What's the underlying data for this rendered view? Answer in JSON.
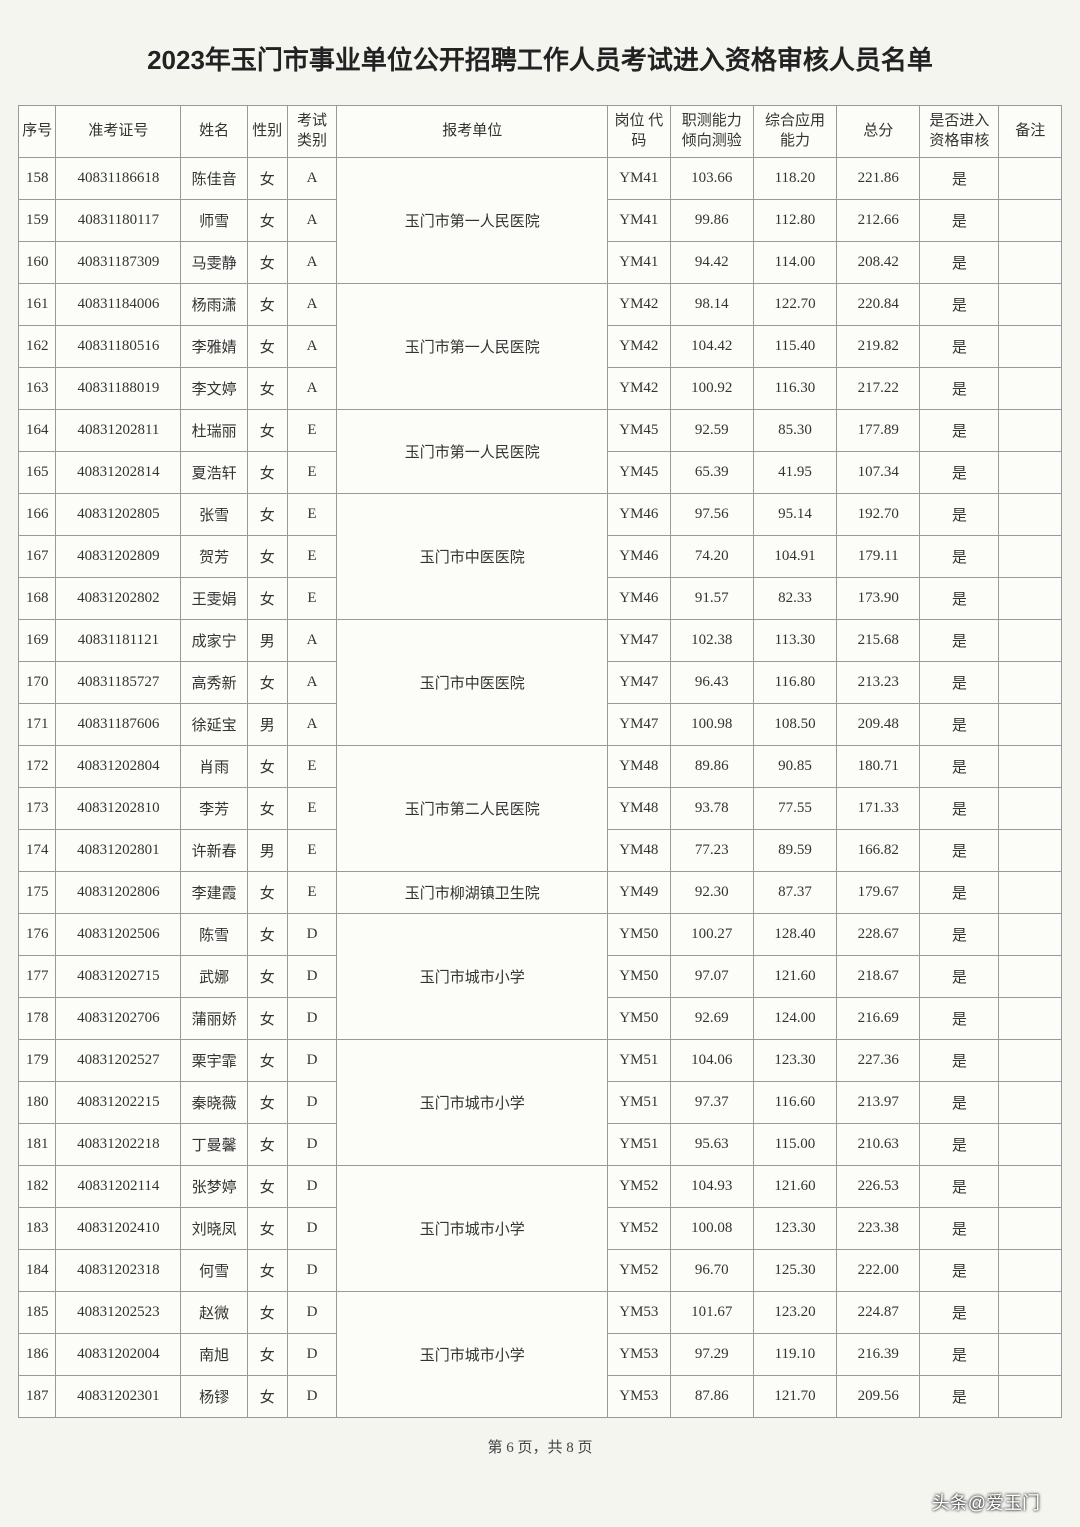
{
  "title": "2023年玉门市事业单位公开招聘工作人员考试进入资格审核人员名单",
  "headers": {
    "seq": "序号",
    "examNo": "准考证号",
    "name": "姓名",
    "sex": "性别",
    "category": "考试\n类别",
    "unit": "报考单位",
    "postCode": "岗位\n代码",
    "score1": "职测能力\n倾向测验",
    "score2": "综合应用\n能力",
    "total": "总分",
    "pass": "是否进入\n资格审核",
    "note": "备注"
  },
  "groups": [
    {
      "unit": "玉门市第一人民医院",
      "rows": [
        {
          "seq": "158",
          "examNo": "40831186618",
          "name": "陈佳音",
          "sex": "女",
          "cat": "A",
          "post": "YM41",
          "s1": "103.66",
          "s2": "118.20",
          "tot": "221.86",
          "pass": "是",
          "note": ""
        },
        {
          "seq": "159",
          "examNo": "40831180117",
          "name": "师雪",
          "sex": "女",
          "cat": "A",
          "post": "YM41",
          "s1": "99.86",
          "s2": "112.80",
          "tot": "212.66",
          "pass": "是",
          "note": ""
        },
        {
          "seq": "160",
          "examNo": "40831187309",
          "name": "马雯静",
          "sex": "女",
          "cat": "A",
          "post": "YM41",
          "s1": "94.42",
          "s2": "114.00",
          "tot": "208.42",
          "pass": "是",
          "note": ""
        }
      ]
    },
    {
      "unit": "玉门市第一人民医院",
      "rows": [
        {
          "seq": "161",
          "examNo": "40831184006",
          "name": "杨雨潇",
          "sex": "女",
          "cat": "A",
          "post": "YM42",
          "s1": "98.14",
          "s2": "122.70",
          "tot": "220.84",
          "pass": "是",
          "note": ""
        },
        {
          "seq": "162",
          "examNo": "40831180516",
          "name": "李雅婧",
          "sex": "女",
          "cat": "A",
          "post": "YM42",
          "s1": "104.42",
          "s2": "115.40",
          "tot": "219.82",
          "pass": "是",
          "note": ""
        },
        {
          "seq": "163",
          "examNo": "40831188019",
          "name": "李文婷",
          "sex": "女",
          "cat": "A",
          "post": "YM42",
          "s1": "100.92",
          "s2": "116.30",
          "tot": "217.22",
          "pass": "是",
          "note": ""
        }
      ]
    },
    {
      "unit": "玉门市第一人民医院",
      "rows": [
        {
          "seq": "164",
          "examNo": "40831202811",
          "name": "杜瑞丽",
          "sex": "女",
          "cat": "E",
          "post": "YM45",
          "s1": "92.59",
          "s2": "85.30",
          "tot": "177.89",
          "pass": "是",
          "note": ""
        },
        {
          "seq": "165",
          "examNo": "40831202814",
          "name": "夏浩轩",
          "sex": "女",
          "cat": "E",
          "post": "YM45",
          "s1": "65.39",
          "s2": "41.95",
          "tot": "107.34",
          "pass": "是",
          "note": ""
        }
      ]
    },
    {
      "unit": "玉门市中医医院",
      "rows": [
        {
          "seq": "166",
          "examNo": "40831202805",
          "name": "张雪",
          "sex": "女",
          "cat": "E",
          "post": "YM46",
          "s1": "97.56",
          "s2": "95.14",
          "tot": "192.70",
          "pass": "是",
          "note": ""
        },
        {
          "seq": "167",
          "examNo": "40831202809",
          "name": "贺芳",
          "sex": "女",
          "cat": "E",
          "post": "YM46",
          "s1": "74.20",
          "s2": "104.91",
          "tot": "179.11",
          "pass": "是",
          "note": ""
        },
        {
          "seq": "168",
          "examNo": "40831202802",
          "name": "王雯娟",
          "sex": "女",
          "cat": "E",
          "post": "YM46",
          "s1": "91.57",
          "s2": "82.33",
          "tot": "173.90",
          "pass": "是",
          "note": ""
        }
      ]
    },
    {
      "unit": "玉门市中医医院",
      "rows": [
        {
          "seq": "169",
          "examNo": "40831181121",
          "name": "成家宁",
          "sex": "男",
          "cat": "A",
          "post": "YM47",
          "s1": "102.38",
          "s2": "113.30",
          "tot": "215.68",
          "pass": "是",
          "note": ""
        },
        {
          "seq": "170",
          "examNo": "40831185727",
          "name": "高秀新",
          "sex": "女",
          "cat": "A",
          "post": "YM47",
          "s1": "96.43",
          "s2": "116.80",
          "tot": "213.23",
          "pass": "是",
          "note": ""
        },
        {
          "seq": "171",
          "examNo": "40831187606",
          "name": "徐延宝",
          "sex": "男",
          "cat": "A",
          "post": "YM47",
          "s1": "100.98",
          "s2": "108.50",
          "tot": "209.48",
          "pass": "是",
          "note": ""
        }
      ]
    },
    {
      "unit": "玉门市第二人民医院",
      "rows": [
        {
          "seq": "172",
          "examNo": "40831202804",
          "name": "肖雨",
          "sex": "女",
          "cat": "E",
          "post": "YM48",
          "s1": "89.86",
          "s2": "90.85",
          "tot": "180.71",
          "pass": "是",
          "note": ""
        },
        {
          "seq": "173",
          "examNo": "40831202810",
          "name": "李芳",
          "sex": "女",
          "cat": "E",
          "post": "YM48",
          "s1": "93.78",
          "s2": "77.55",
          "tot": "171.33",
          "pass": "是",
          "note": ""
        },
        {
          "seq": "174",
          "examNo": "40831202801",
          "name": "许新春",
          "sex": "男",
          "cat": "E",
          "post": "YM48",
          "s1": "77.23",
          "s2": "89.59",
          "tot": "166.82",
          "pass": "是",
          "note": ""
        }
      ]
    },
    {
      "unit": "玉门市柳湖镇卫生院",
      "rows": [
        {
          "seq": "175",
          "examNo": "40831202806",
          "name": "李建霞",
          "sex": "女",
          "cat": "E",
          "post": "YM49",
          "s1": "92.30",
          "s2": "87.37",
          "tot": "179.67",
          "pass": "是",
          "note": ""
        }
      ]
    },
    {
      "unit": "玉门市城市小学",
      "rows": [
        {
          "seq": "176",
          "examNo": "40831202506",
          "name": "陈雪",
          "sex": "女",
          "cat": "D",
          "post": "YM50",
          "s1": "100.27",
          "s2": "128.40",
          "tot": "228.67",
          "pass": "是",
          "note": ""
        },
        {
          "seq": "177",
          "examNo": "40831202715",
          "name": "武娜",
          "sex": "女",
          "cat": "D",
          "post": "YM50",
          "s1": "97.07",
          "s2": "121.60",
          "tot": "218.67",
          "pass": "是",
          "note": ""
        },
        {
          "seq": "178",
          "examNo": "40831202706",
          "name": "蒲丽娇",
          "sex": "女",
          "cat": "D",
          "post": "YM50",
          "s1": "92.69",
          "s2": "124.00",
          "tot": "216.69",
          "pass": "是",
          "note": ""
        }
      ]
    },
    {
      "unit": "玉门市城市小学",
      "rows": [
        {
          "seq": "179",
          "examNo": "40831202527",
          "name": "栗宇霏",
          "sex": "女",
          "cat": "D",
          "post": "YM51",
          "s1": "104.06",
          "s2": "123.30",
          "tot": "227.36",
          "pass": "是",
          "note": ""
        },
        {
          "seq": "180",
          "examNo": "40831202215",
          "name": "秦晓薇",
          "sex": "女",
          "cat": "D",
          "post": "YM51",
          "s1": "97.37",
          "s2": "116.60",
          "tot": "213.97",
          "pass": "是",
          "note": ""
        },
        {
          "seq": "181",
          "examNo": "40831202218",
          "name": "丁曼馨",
          "sex": "女",
          "cat": "D",
          "post": "YM51",
          "s1": "95.63",
          "s2": "115.00",
          "tot": "210.63",
          "pass": "是",
          "note": ""
        }
      ]
    },
    {
      "unit": "玉门市城市小学",
      "rows": [
        {
          "seq": "182",
          "examNo": "40831202114",
          "name": "张梦婷",
          "sex": "女",
          "cat": "D",
          "post": "YM52",
          "s1": "104.93",
          "s2": "121.60",
          "tot": "226.53",
          "pass": "是",
          "note": ""
        },
        {
          "seq": "183",
          "examNo": "40831202410",
          "name": "刘晓凤",
          "sex": "女",
          "cat": "D",
          "post": "YM52",
          "s1": "100.08",
          "s2": "123.30",
          "tot": "223.38",
          "pass": "是",
          "note": ""
        },
        {
          "seq": "184",
          "examNo": "40831202318",
          "name": "何雪",
          "sex": "女",
          "cat": "D",
          "post": "YM52",
          "s1": "96.70",
          "s2": "125.30",
          "tot": "222.00",
          "pass": "是",
          "note": ""
        }
      ]
    },
    {
      "unit": "玉门市城市小学",
      "rows": [
        {
          "seq": "185",
          "examNo": "40831202523",
          "name": "赵微",
          "sex": "女",
          "cat": "D",
          "post": "YM53",
          "s1": "101.67",
          "s2": "123.20",
          "tot": "224.87",
          "pass": "是",
          "note": ""
        },
        {
          "seq": "186",
          "examNo": "40831202004",
          "name": "南旭",
          "sex": "女",
          "cat": "D",
          "post": "YM53",
          "s1": "97.29",
          "s2": "119.10",
          "tot": "216.39",
          "pass": "是",
          "note": ""
        },
        {
          "seq": "187",
          "examNo": "40831202301",
          "name": "杨镠",
          "sex": "女",
          "cat": "D",
          "post": "YM53",
          "s1": "87.86",
          "s2": "121.70",
          "tot": "209.56",
          "pass": "是",
          "note": ""
        }
      ]
    }
  ],
  "footer": "第 6 页，共 8 页",
  "watermark": "头条@爱玉门"
}
